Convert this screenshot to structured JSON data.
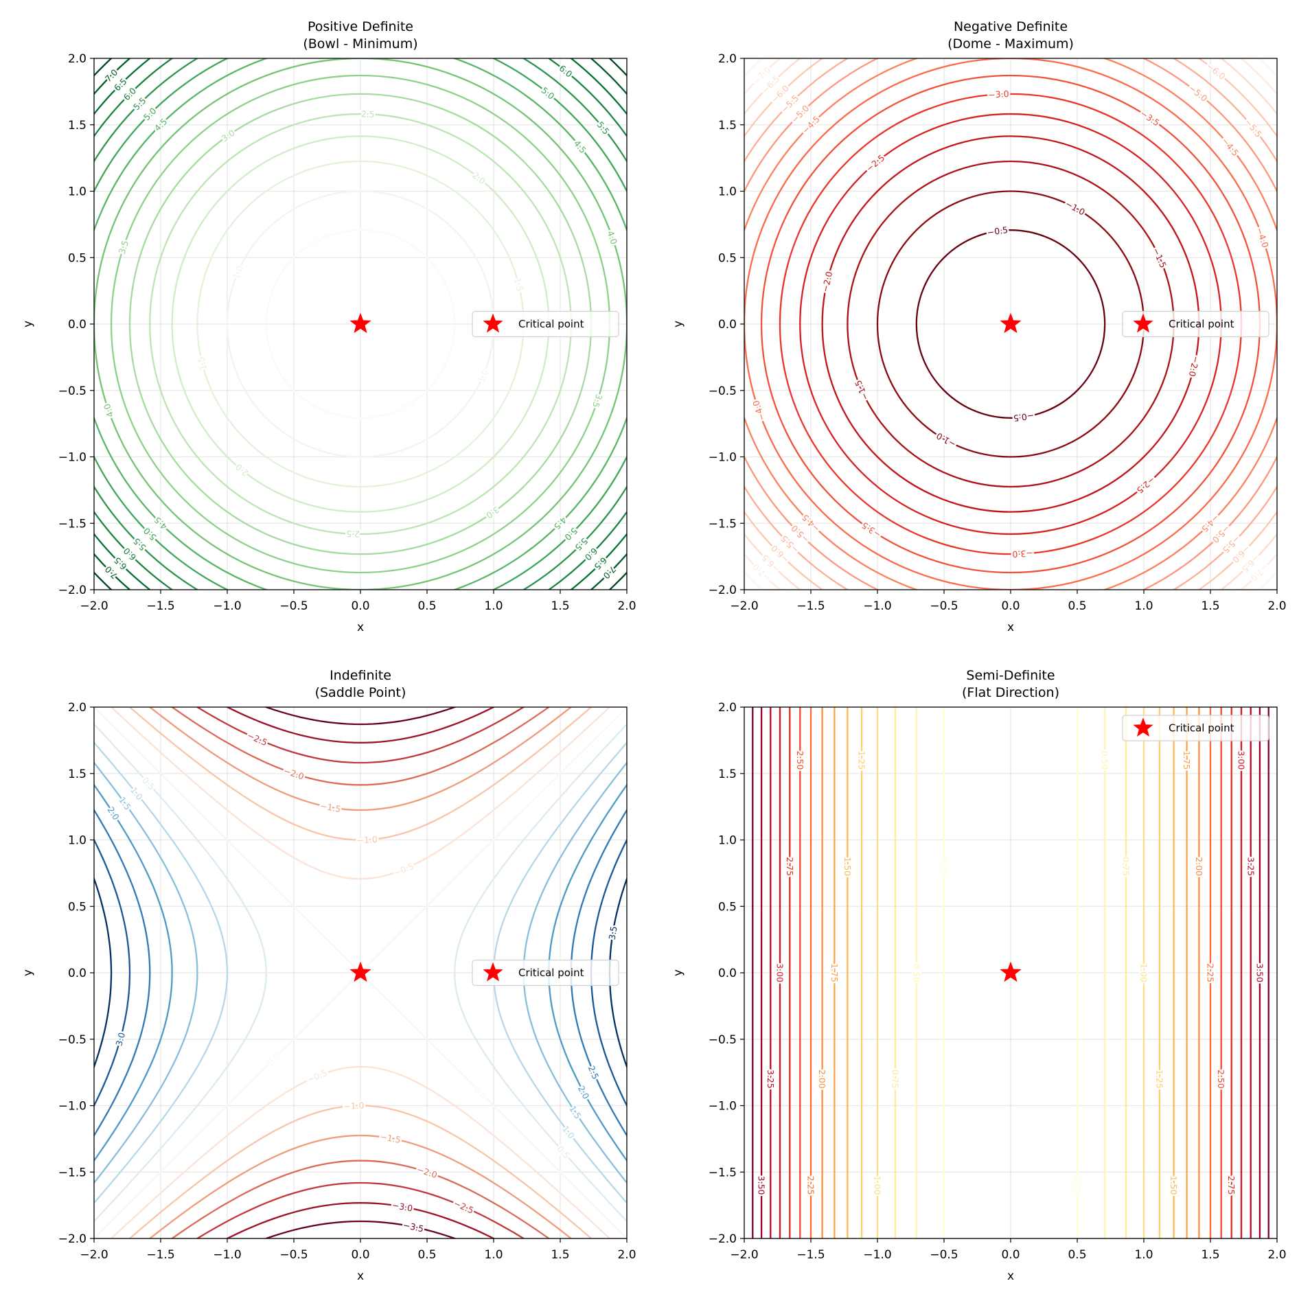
{
  "chart_data": [
    {
      "type": "contour",
      "title": [
        "Positive Definite",
        "(Bowl - Minimum)"
      ],
      "xlabel": "x",
      "ylabel": "y",
      "xlim": [
        -2.0,
        2.0
      ],
      "ylim": [
        -2.0,
        2.0
      ],
      "ticks": [
        -2.0,
        -1.5,
        -1.0,
        -0.5,
        0.0,
        0.5,
        1.0,
        1.5,
        2.0
      ],
      "grid": true,
      "colormap": "Greens",
      "levels": [
        0.5,
        1.0,
        1.5,
        2.0,
        2.5,
        3.0,
        3.5,
        4.0,
        4.5,
        5.0,
        5.5,
        6.0,
        6.5,
        7.0,
        7.5
      ],
      "marker": {
        "x": 0.0,
        "y": 0.0,
        "shape": "star",
        "color": "#ff0000"
      },
      "legend": {
        "label": "Critical point",
        "placement": "center-right"
      }
    },
    {
      "type": "contour",
      "title": [
        "Negative Definite",
        "(Dome - Maximum)"
      ],
      "xlabel": "x",
      "ylabel": "y",
      "xlim": [
        -2.0,
        2.0
      ],
      "ylim": [
        -2.0,
        2.0
      ],
      "ticks": [
        -2.0,
        -1.5,
        -1.0,
        -0.5,
        0.0,
        0.5,
        1.0,
        1.5,
        2.0
      ],
      "grid": true,
      "colormap": "Reds",
      "levels": [
        -7.5,
        -7.0,
        -6.5,
        -6.0,
        -5.5,
        -5.0,
        -4.5,
        -4.0,
        -3.5,
        -3.0,
        -2.5,
        -2.0,
        -1.5,
        -1.0,
        -0.5
      ],
      "marker": {
        "x": 0.0,
        "y": 0.0,
        "shape": "star",
        "color": "#ff0000"
      },
      "legend": {
        "label": "Critical point",
        "placement": "center-right"
      }
    },
    {
      "type": "contour",
      "title": [
        "Indefinite",
        "(Saddle Point)"
      ],
      "xlabel": "x",
      "ylabel": "y",
      "xlim": [
        -2.0,
        2.0
      ],
      "ylim": [
        -2.0,
        2.0
      ],
      "ticks": [
        -2.0,
        -1.5,
        -1.0,
        -0.5,
        0.0,
        0.5,
        1.0,
        1.5,
        2.0
      ],
      "grid": true,
      "colormap": "RdBu",
      "levels": [
        -3.5,
        -3.0,
        -2.5,
        -2.0,
        -1.5,
        -1.0,
        -0.5,
        0.0,
        0.5,
        1.0,
        1.5,
        2.0,
        2.5,
        3.0,
        3.5
      ],
      "marker": {
        "x": 0.0,
        "y": 0.0,
        "shape": "star",
        "color": "#ff0000"
      },
      "legend": {
        "label": "Critical point",
        "placement": "center-right"
      }
    },
    {
      "type": "contour",
      "title": [
        "Semi-Definite",
        "(Flat Direction)"
      ],
      "xlabel": "x",
      "ylabel": "y",
      "xlim": [
        -2.0,
        2.0
      ],
      "ylim": [
        -2.0,
        2.0
      ],
      "ticks": [
        -2.0,
        -1.5,
        -1.0,
        -0.5,
        0.0,
        0.5,
        1.0,
        1.5,
        2.0
      ],
      "grid": true,
      "colormap": "YlOrRd",
      "levels": [
        0.25,
        0.5,
        0.75,
        1.0,
        1.25,
        1.5,
        1.75,
        2.0,
        2.25,
        2.5,
        2.75,
        3.0,
        3.25,
        3.5,
        3.75
      ],
      "marker": {
        "x": 0.0,
        "y": 0.0,
        "shape": "star",
        "color": "#ff0000"
      },
      "legend": {
        "label": "Critical point",
        "placement": "upper-right"
      }
    }
  ]
}
